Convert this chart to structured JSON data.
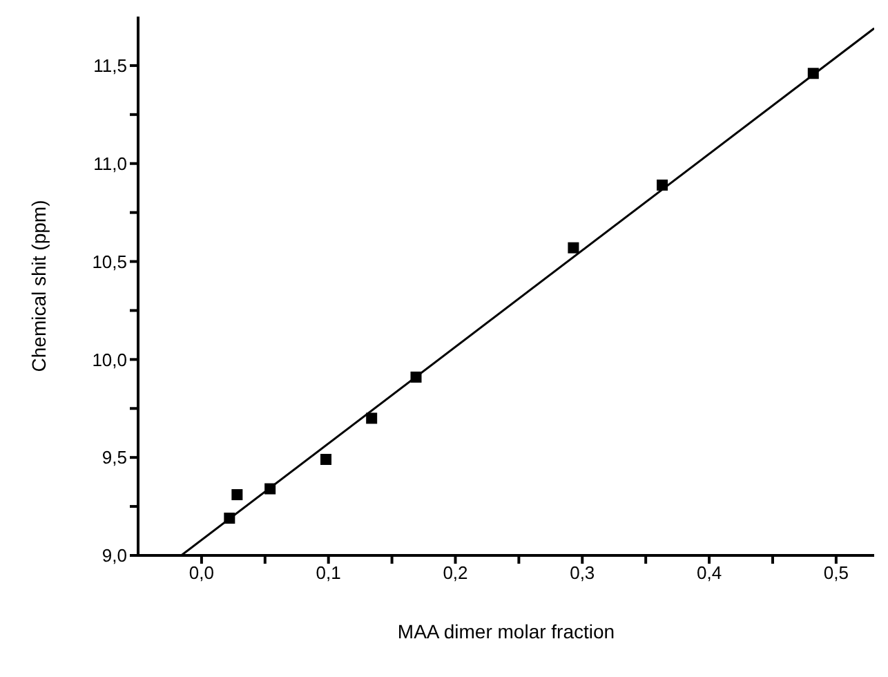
{
  "chart_data": {
    "type": "scatter",
    "xlabel": "MAA dimer molar fraction",
    "ylabel": "Chemical shit (ppm)",
    "xlim": [
      -0.05,
      0.53
    ],
    "ylim": [
      9.0,
      11.75
    ],
    "xticks": [
      {
        "value": 0,
        "label": "0,0"
      },
      {
        "value": 0.05,
        "label": null
      },
      {
        "value": 0.1,
        "label": "0,1"
      },
      {
        "value": 0.15,
        "label": null
      },
      {
        "value": 0.2,
        "label": "0,2"
      },
      {
        "value": 0.25,
        "label": null
      },
      {
        "value": 0.3,
        "label": "0,3"
      },
      {
        "value": 0.35,
        "label": null
      },
      {
        "value": 0.4,
        "label": "0,4"
      },
      {
        "value": 0.45,
        "label": null
      },
      {
        "value": 0.5,
        "label": "0,5"
      }
    ],
    "yticks": [
      {
        "value": 9.0,
        "label": "9,0"
      },
      {
        "value": 9.25,
        "label": null
      },
      {
        "value": 9.5,
        "label": "9,5"
      },
      {
        "value": 9.75,
        "label": null
      },
      {
        "value": 10.0,
        "label": "10,0"
      },
      {
        "value": 10.25,
        "label": null
      },
      {
        "value": 10.5,
        "label": "10,5"
      },
      {
        "value": 10.75,
        "label": null
      },
      {
        "value": 11.0,
        "label": "11,0"
      },
      {
        "value": 11.25,
        "label": null
      },
      {
        "value": 11.5,
        "label": "11,5"
      }
    ],
    "grid": false,
    "legend": false,
    "series": [
      {
        "marker": "square",
        "color": "#000000",
        "x": [
          0.022,
          0.028,
          0.054,
          0.098,
          0.134,
          0.169,
          0.293,
          0.363,
          0.482
        ],
        "values": [
          9.19,
          9.31,
          9.34,
          9.49,
          9.7,
          9.91,
          10.57,
          10.89,
          11.46
        ]
      },
      {
        "type": "line",
        "marker": "none",
        "line_style": "solid",
        "color": "#000000",
        "x": [
          -0.016,
          0.53
        ],
        "values": [
          9.0,
          11.69
        ]
      }
    ]
  }
}
